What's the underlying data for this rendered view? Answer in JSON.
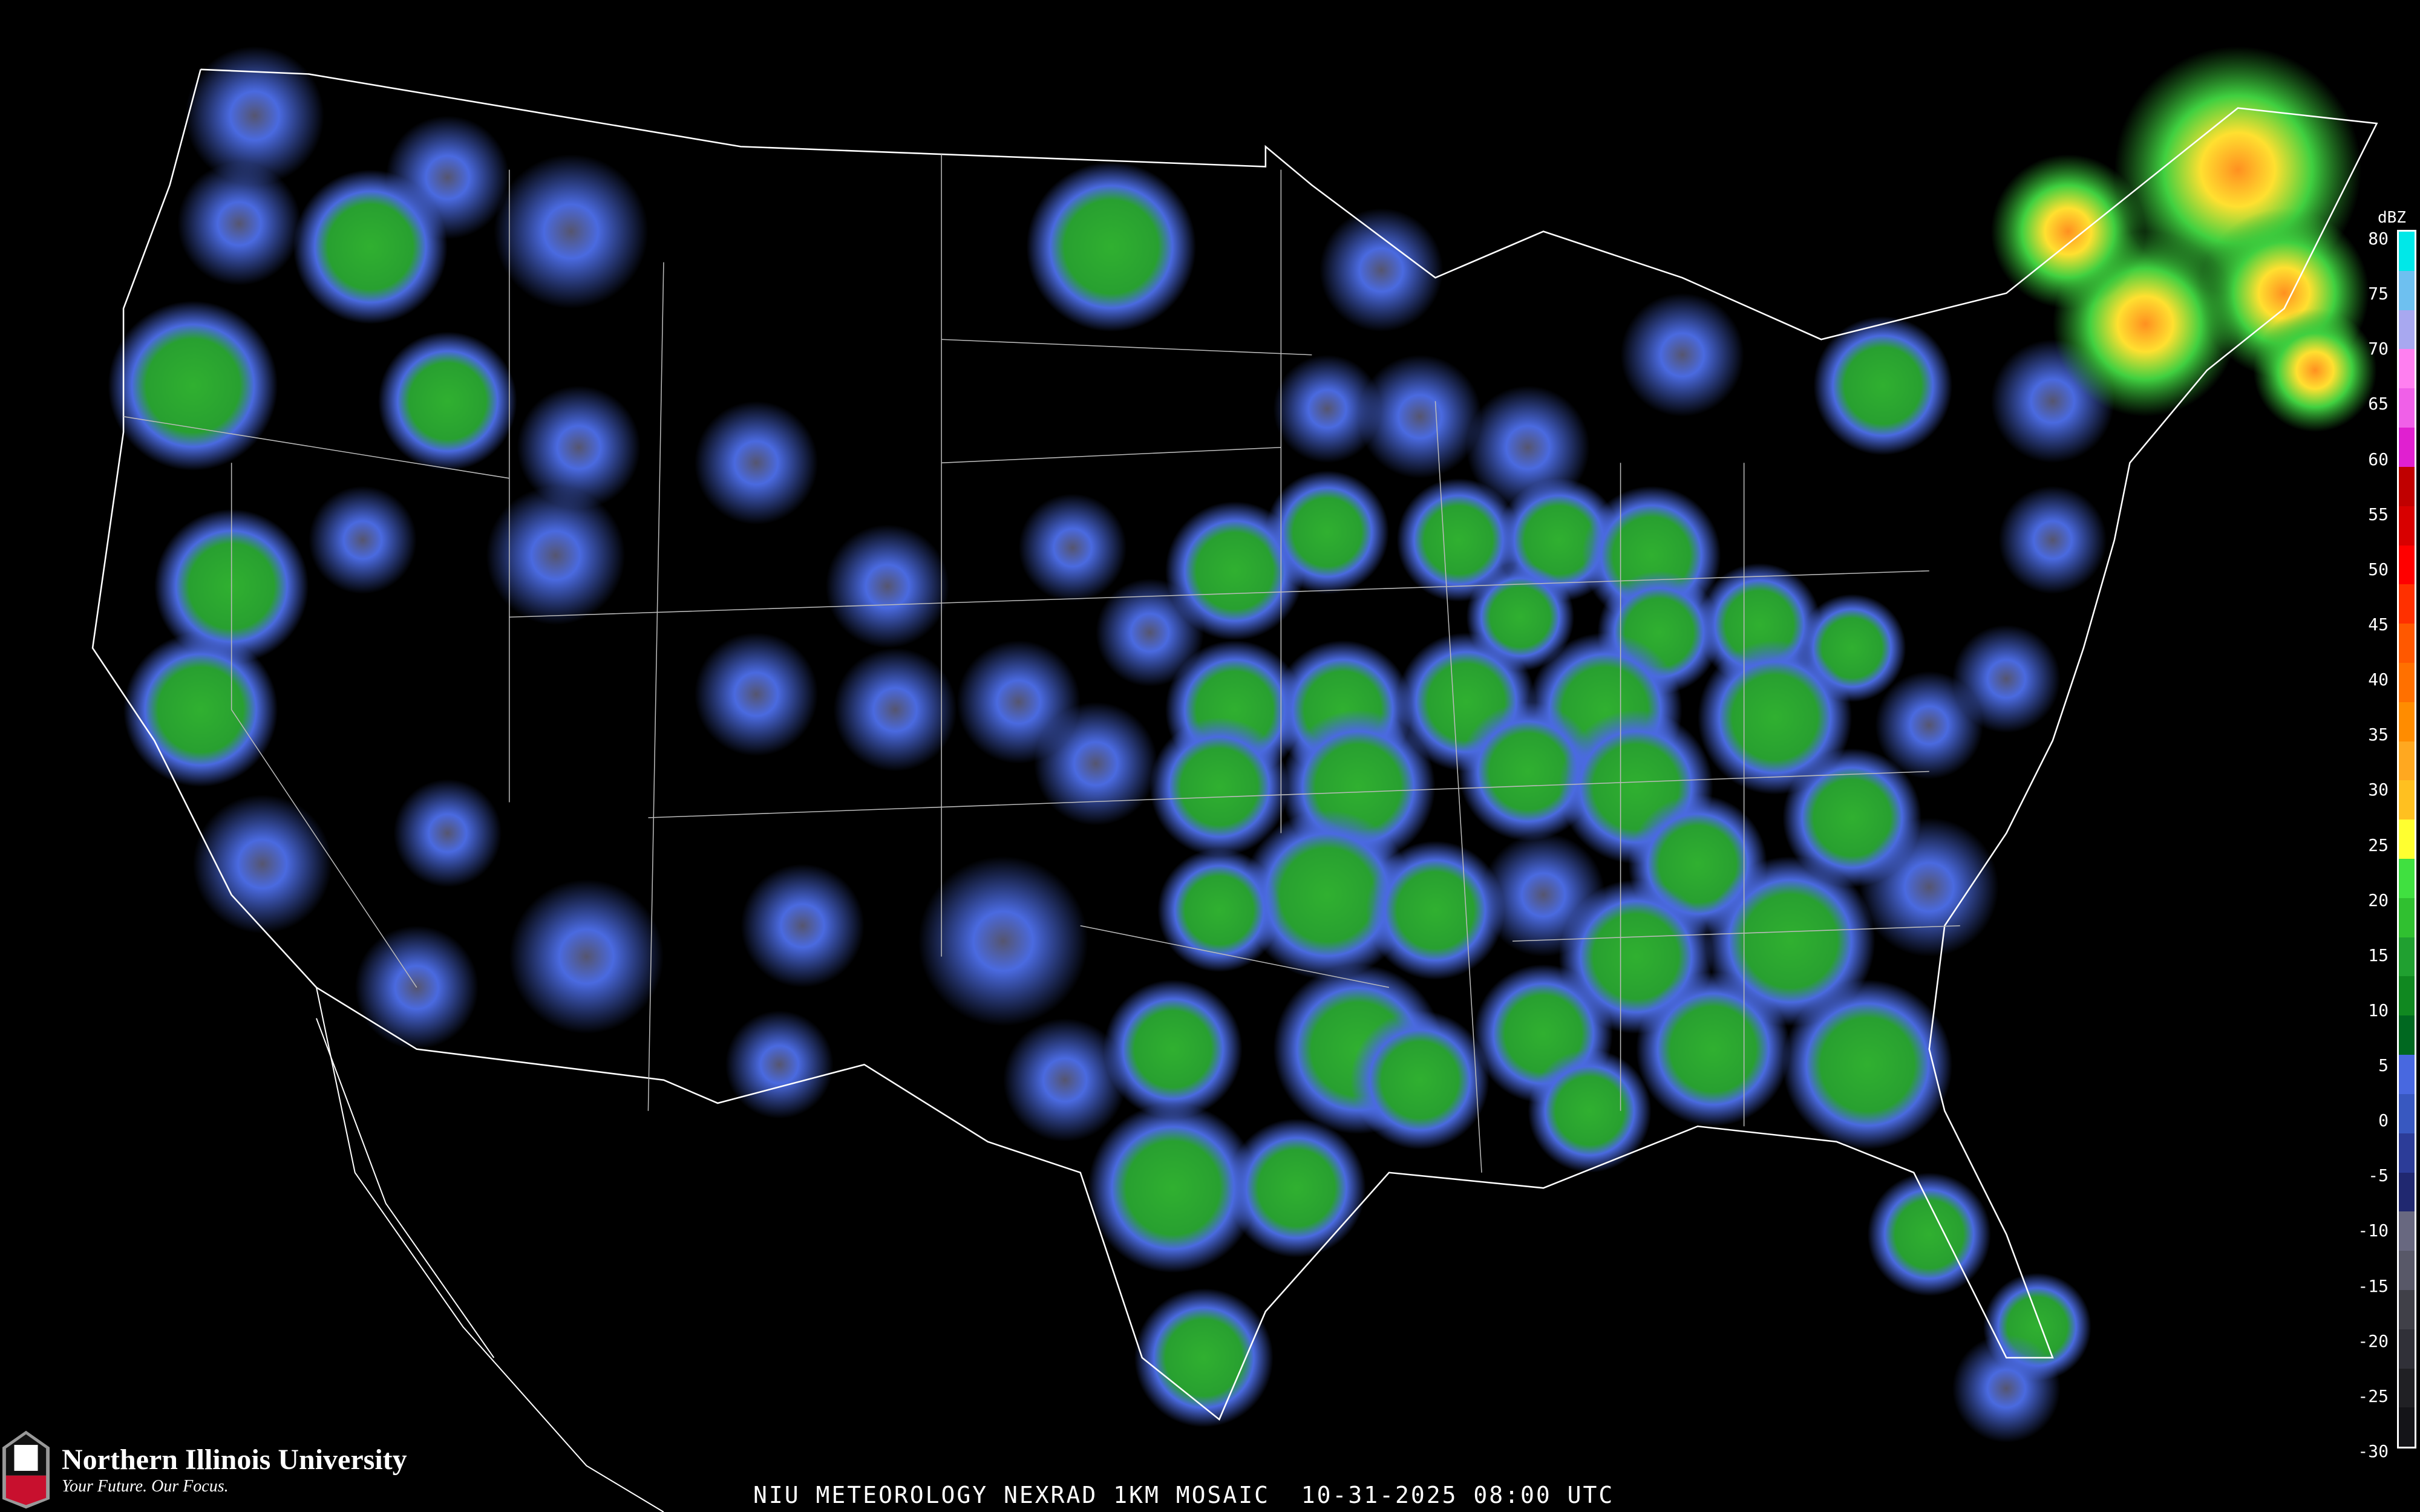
{
  "title": "NIU METEOROLOGY NEXRAD 1KM MOSAIC  10-31-2025 08:00 UTC",
  "logo": {
    "name": "Northern Illinois University",
    "tagline": "Your Future. Our Focus.",
    "mark": "NIU"
  },
  "legend": {
    "unit": "dBZ",
    "ticks": [
      "80",
      "75",
      "70",
      "65",
      "60",
      "55",
      "50",
      "45",
      "40",
      "35",
      "30",
      "25",
      "20",
      "15",
      "10",
      "5",
      "0",
      "-5",
      "-10",
      "-15",
      "-20",
      "-25",
      "-30"
    ],
    "colors": [
      "#00e8e8",
      "#6ec0f0",
      "#a8a8f0",
      "#ff80f0",
      "#f060e8",
      "#e020d0",
      "#c00000",
      "#d80000",
      "#ff0000",
      "#ff3000",
      "#ff5800",
      "#ff7000",
      "#ff8c00",
      "#ffa820",
      "#ffc020",
      "#ffff30",
      "#40e040",
      "#30c030",
      "#20a030",
      "#108820",
      "#006820",
      "#4868e0",
      "#3858c0",
      "#2c3c98",
      "#202870",
      "#686880",
      "#585868",
      "#404048",
      "#303038",
      "#202024",
      "#141418"
    ]
  }
}
